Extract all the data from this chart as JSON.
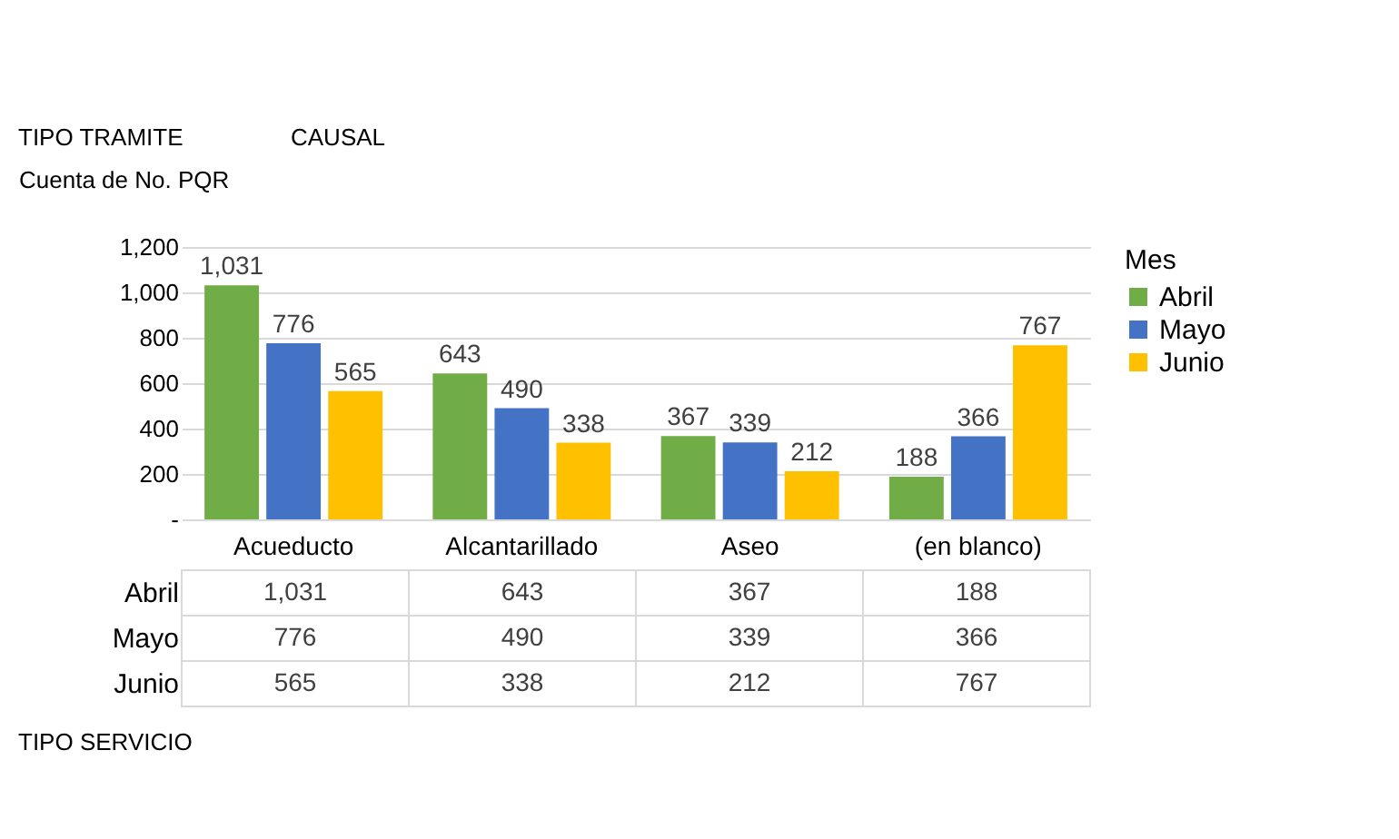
{
  "chart_data": {
    "type": "bar",
    "categories": [
      "Acueducto",
      "Alcantarillado",
      "Aseo",
      "(en blanco)"
    ],
    "series": [
      {
        "name": "Abril",
        "color": "#70ad47",
        "values": [
          1031,
          643,
          367,
          188
        ],
        "value_labels": [
          "1,031",
          "643",
          "367",
          "188"
        ]
      },
      {
        "name": "Mayo",
        "color": "#4472c4",
        "values": [
          776,
          490,
          339,
          366
        ],
        "value_labels": [
          "776",
          "490",
          "339",
          "366"
        ]
      },
      {
        "name": "Junio",
        "color": "#ffc000",
        "values": [
          565,
          338,
          212,
          767
        ],
        "value_labels": [
          "565",
          "338",
          "212",
          "767"
        ]
      }
    ],
    "ylabel": "Cuenta de No. PQR",
    "legend_title": "Mes",
    "annotations": [
      "TIPO TRAMITE",
      "CAUSAL",
      "TIPO SERVICIO"
    ],
    "ylim": [
      0,
      1200
    ],
    "yticks": [
      {
        "value": 0,
        "label": "-"
      },
      200,
      400,
      600,
      800,
      {
        "value": 1000,
        "label": "1,000"
      },
      {
        "value": 1200,
        "label": "1,200"
      }
    ],
    "grid": "y",
    "legend": "right"
  }
}
